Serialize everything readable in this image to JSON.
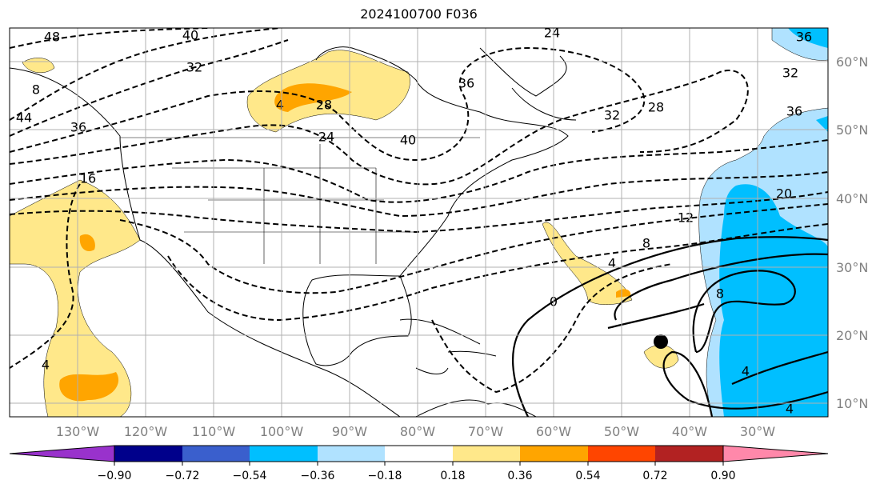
{
  "title": "2024100700 F036",
  "lon_labels": [
    "130°W",
    "120°W",
    "110°W",
    "100°W",
    "90°W",
    "80°W",
    "70°W",
    "60°W",
    "50°W",
    "40°W",
    "30°W"
  ],
  "lat_labels": [
    "60°N",
    "50°N",
    "40°N",
    "30°N",
    "20°N",
    "10°N"
  ],
  "colorbar": {
    "ticks": [
      "−0.90",
      "−0.72",
      "−0.54",
      "−0.36",
      "−0.18",
      "0.18",
      "0.36",
      "0.54",
      "0.72",
      "0.90"
    ],
    "colors": [
      "#9932cc",
      "#00008b",
      "#3a5fcd",
      "#00bfff",
      "#b0e2ff",
      "#ffffff",
      "#ffe88a",
      "#ffa500",
      "#ff4500",
      "#b22222",
      "#ff88aa"
    ]
  },
  "contour_labels": [
    "48",
    "40",
    "32",
    "44",
    "36",
    "8",
    "16",
    "4",
    "28",
    "24",
    "40",
    "36",
    "24",
    "32",
    "28",
    "36",
    "32",
    "36",
    "20",
    "12",
    "8",
    "4",
    "0",
    "8",
    "4",
    "4",
    "4"
  ],
  "marker": "storm-position"
}
